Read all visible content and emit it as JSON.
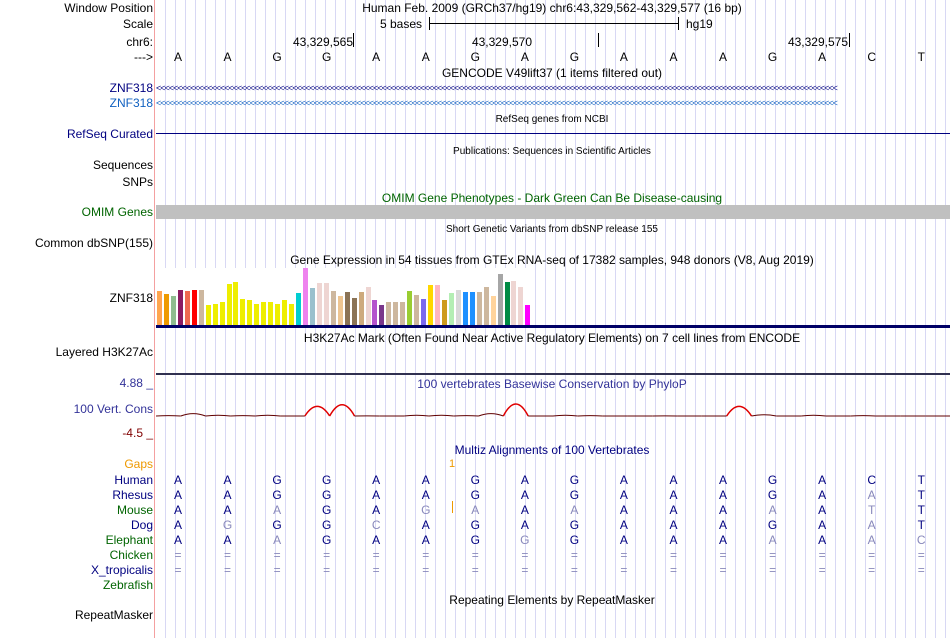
{
  "labels": {
    "window_position": "Window Position",
    "scale": "Scale",
    "chr": "chr6:",
    "arrow": "--->",
    "znf1": "ZNF318",
    "znf2": "ZNF318",
    "refseq": "RefSeq Curated",
    "sequences": "Sequences",
    "snps": "SNPs",
    "omim": "OMIM Genes",
    "dbsnp": "Common dbSNP(155)",
    "gtex": "ZNF318",
    "h3k": "Layered H3K27Ac",
    "cons_max": "4.88 _",
    "cons": "100 Vert. Cons",
    "cons_min": "-4.5 _",
    "gaps": "Gaps",
    "repeat": "RepeatMasker"
  },
  "header": {
    "position": "Human Feb. 2009 (GRCh37/hg19)   chr6:43,329,562-43,329,577 (16 bp)",
    "scale_label": "5 bases",
    "scale_db": "hg19",
    "ticks": [
      "43,329,565",
      "43,329,570",
      "43,329,575"
    ]
  },
  "bases": [
    "A",
    "A",
    "G",
    "G",
    "A",
    "A",
    "G",
    "A",
    "G",
    "A",
    "A",
    "A",
    "G",
    "A",
    "C",
    "T"
  ],
  "titles": {
    "gencode": "GENCODE V49lift37 (1 items filtered out)",
    "refseq": "RefSeq genes from NCBI",
    "pubs": "Publications: Sequences in Scientific Articles",
    "omim": "OMIM Gene Phenotypes - Dark Green Can Be Disease-causing",
    "snp": "Short Genetic Variants from dbSNP release 155",
    "gtex": "Gene Expression in 54 tissues from GTEx RNA-seq of 17382 samples, 948 donors (V8, Aug 2019)",
    "h3k": "H3K27Ac Mark (Often Found Near Active Regulatory Elements) on 7 cell lines from ENCODE",
    "phylop": "100 vertebrates Basewise Conservation by PhyloP",
    "multiz": "Multiz Alignments of 100 Vertebrates",
    "repeat": "Repeating Elements by RepeatMasker"
  },
  "gap_count": "1",
  "gtex": {
    "values": [
      0.6,
      0.55,
      0.5,
      0.62,
      0.6,
      0.62,
      0.62,
      0.35,
      0.37,
      0.4,
      0.72,
      0.76,
      0.45,
      0.43,
      0.37,
      0.4,
      0.4,
      0.37,
      0.43,
      0.37,
      0.57,
      1.0,
      0.65,
      0.73,
      0.73,
      0.6,
      0.5,
      0.58,
      0.48,
      0.58,
      0.67,
      0.43,
      0.35,
      0.4,
      0.4,
      0.4,
      0.6,
      0.53,
      0.45,
      0.7,
      0.7,
      0.43,
      0.56,
      0.62,
      0.58,
      0.58,
      0.58,
      0.66,
      0.5,
      0.9,
      0.75,
      0.77,
      0.67,
      0.35
    ],
    "colors": [
      "#FFA54F",
      "#EE9A00",
      "#8FBC8F",
      "#8B1C62",
      "#EE6A50",
      "#FF0000",
      "#CDB79E",
      "#EEEE00",
      "#EEEE00",
      "#EEEE00",
      "#EEEE00",
      "#EEEE00",
      "#EEEE00",
      "#EEEE00",
      "#EEEE00",
      "#EEEE00",
      "#EEEE00",
      "#EEEE00",
      "#EEEE00",
      "#EEEE00",
      "#00CED1",
      "#EE82EE",
      "#9AC0CD",
      "#EED5D2",
      "#EED5D2",
      "#CDB79E",
      "#EEC591",
      "#8B7355",
      "#8B7355",
      "#CDAA7D",
      "#EED5D2",
      "#B452CD",
      "#7A378B",
      "#CDB79E",
      "#CDB79E",
      "#CDB79E",
      "#9ACD32",
      "#CDB79E",
      "#7B68EE",
      "#FFD700",
      "#FFB6C1",
      "#CD9B1D",
      "#B4EEB4",
      "#D9D9D9",
      "#1E90FF",
      "#1E90FF",
      "#CDB79E",
      "#CDB79E",
      "#FFD39B",
      "#A6A6A6",
      "#008B45",
      "#EED5D2",
      "#EED5D2",
      "#FF00FF"
    ]
  },
  "phylop": [
    0.05,
    0.3,
    0.1,
    0.05,
    0.1,
    0.0,
    1.2,
    1.4,
    0.02,
    0.0,
    0.1,
    0.1,
    0.05,
    0.3,
    1.5,
    0.0,
    0.1,
    0.05,
    0.0,
    0.0,
    0.02,
    0.0,
    0.0,
    1.2,
    0.15,
    0.0,
    0.1,
    0.0,
    0.05,
    0.0,
    0.0,
    0.0
  ],
  "alignment": [
    {
      "name": "Human",
      "color": "#000080",
      "seq": "AAGGAAGAGAAAGACT",
      "dim": []
    },
    {
      "name": "Rhesus",
      "color": "#000080",
      "seq": "AAGGAAGAGAAAGAAT",
      "dim": [
        14
      ]
    },
    {
      "name": "Mouse",
      "color": "#006400",
      "seq": "AAAGAGAAAAAAAATT",
      "dim": [
        2,
        5,
        6,
        8,
        12,
        14
      ]
    },
    {
      "name": "Dog",
      "color": "#000080",
      "seq": "AGGGCAGAGAAAGAAT",
      "dim": [
        1,
        4,
        14
      ]
    },
    {
      "name": "Elephant",
      "color": "#006400",
      "seq": "AAAGAAGGGAAAAAAC",
      "dim": [
        2,
        7,
        12,
        14,
        15
      ]
    },
    {
      "name": "Chicken",
      "color": "#006400",
      "seq": "================",
      "dim": []
    },
    {
      "name": "X_tropicalis",
      "color": "#000080",
      "seq": "================",
      "dim": []
    },
    {
      "name": "Zebrafish",
      "color": "#006400",
      "seq": "",
      "dim": []
    }
  ],
  "colors": {
    "navy": "#000080",
    "omim_bar": "#c0c0c0",
    "phylop_pos": "#e00000"
  }
}
